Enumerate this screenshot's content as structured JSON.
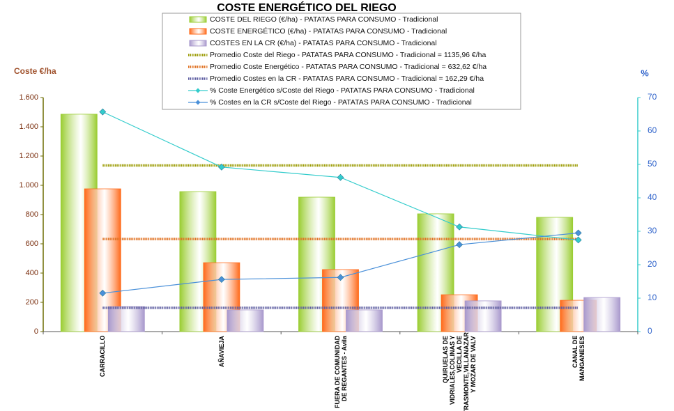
{
  "chart_data": {
    "type": "bar",
    "title": "COSTE ENERGÉTICO DEL RIEGO",
    "y_label": "Coste €/ha",
    "y2_label": "%",
    "categories": [
      "CARRACILLO",
      "AÑAVIEJA",
      "FUERA DE COMUNIDAD DE REGANTES - Avila",
      "QUIRUELAS DE VIDRIALES,COLINAS Y VECILLA DE TRASMONTE,VILLANAZAR Y MOZAR DE VALV",
      "CANAL DE MANGANESES"
    ],
    "ylim": [
      0,
      1600
    ],
    "yticks": [
      0,
      200,
      400,
      600,
      800,
      {
        "value": 1000,
        "label": "1.000"
      },
      {
        "value": 1200,
        "label": "1.200"
      },
      {
        "value": 1400,
        "label": "1.400"
      },
      {
        "value": 1600,
        "label": "1.600"
      }
    ],
    "y2lim": [
      0,
      70
    ],
    "y2ticks": [
      0,
      10,
      20,
      30,
      40,
      50,
      60,
      70
    ],
    "series": [
      {
        "name": "COSTE DEL RIEGO (€/ha) - PATATAS PARA CONSUMO - Tradicional",
        "kind": "bar",
        "color": "#9acd32",
        "values": [
          1486,
          957,
          919,
          805,
          781
        ]
      },
      {
        "name": "COSTE ENERGÉTICO (€/ha) - PATATAS PARA CONSUMO - Tradicional",
        "kind": "bar",
        "color": "#ff6a1a",
        "values": [
          976,
          471,
          424,
          252,
          214
        ]
      },
      {
        "name": "COSTES EN LA CR (€/ha) - PATATAS PARA CONSUMO - Tradicional",
        "kind": "bar",
        "color": "#a898cc",
        "values": [
          171,
          148,
          148,
          210,
          233
        ]
      },
      {
        "name": "Promedio Coste del Riego - PATATAS PARA CONSUMO - Tradicional = 1135,96 €/ha",
        "kind": "average",
        "color": "#9a9a00",
        "value": 1135.96
      },
      {
        "name": "Promedio Coste Energético - PATATAS PARA CONSUMO - Tradicional = 632,62 €/ha",
        "kind": "average",
        "color": "#e07020",
        "value": 632.62
      },
      {
        "name": "Promedio Costes en la CR - PATATAS PARA CONSUMO - Tradicional = 162,29 €/ha",
        "kind": "average",
        "color": "#5c5ca0",
        "value": 162.29
      },
      {
        "name": "% Coste Energético s/Coste del Riego - PATATAS PARA CONSUMO - Tradicional",
        "kind": "line",
        "axis": "y2",
        "color": "#33cccc",
        "values": [
          65.7,
          49.2,
          46.1,
          31.3,
          27.4
        ]
      },
      {
        "name": "% Costes en la CR s/Coste del Riego - PATATAS PARA CONSUMO - Tradicional",
        "kind": "line",
        "axis": "y2",
        "color": "#4a90d9",
        "values": [
          11.5,
          15.6,
          16.2,
          26.0,
          29.5
        ]
      }
    ]
  }
}
